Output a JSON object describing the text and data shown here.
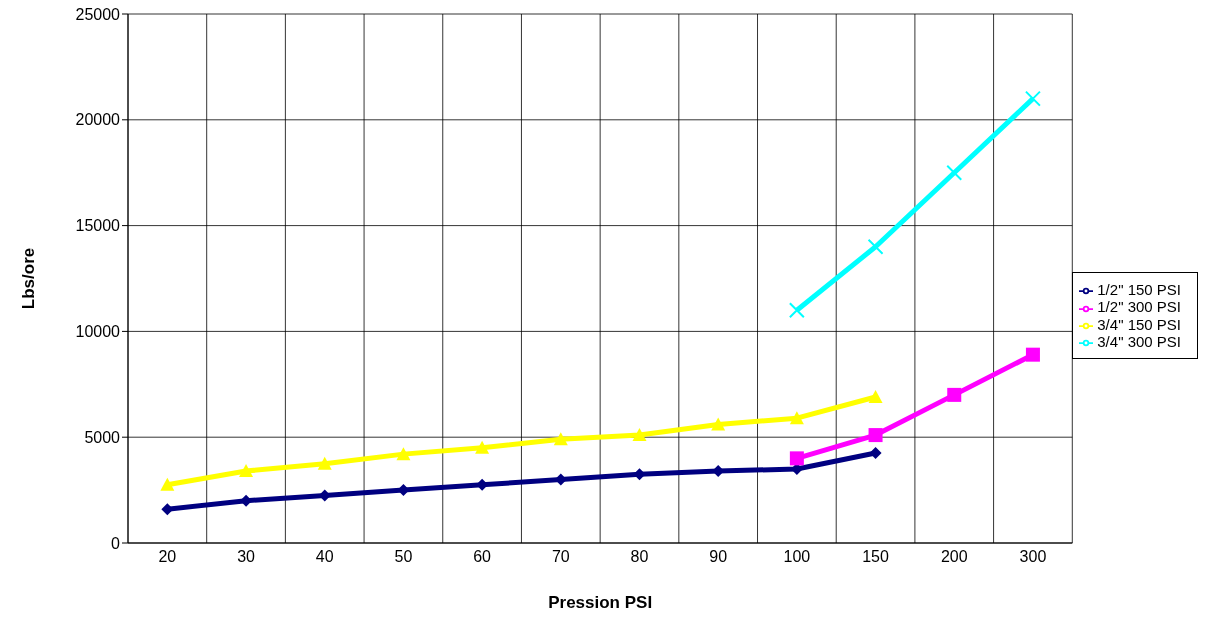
{
  "chart_data": {
    "type": "line",
    "xlabel": "Pression PSI",
    "ylabel": "Lbs/ore",
    "categories": [
      "20",
      "30",
      "40",
      "50",
      "60",
      "70",
      "80",
      "90",
      "100",
      "150",
      "200",
      "300"
    ],
    "series": [
      {
        "name": "1/2\" 150 PSI",
        "color": "#000080",
        "marker": "diamond",
        "values": [
          1600,
          2000,
          2250,
          2500,
          2750,
          3000,
          3250,
          3400,
          3500,
          4250,
          null,
          null
        ]
      },
      {
        "name": "1/2\" 300 PSI",
        "color": "#ff00ff",
        "marker": "square",
        "values": [
          null,
          null,
          null,
          null,
          null,
          null,
          null,
          null,
          4000,
          5100,
          7000,
          8900
        ]
      },
      {
        "name": "3/4\" 150 PSI",
        "color": "#ffff00",
        "marker": "triangle",
        "values": [
          2750,
          3400,
          3750,
          4200,
          4500,
          4900,
          5100,
          5600,
          5900,
          6900,
          null,
          null
        ]
      },
      {
        "name": "3/4\" 300 PSI",
        "color": "#00ffff",
        "marker": "cross",
        "values": [
          null,
          null,
          null,
          null,
          null,
          null,
          null,
          null,
          11000,
          14000,
          17500,
          21000
        ]
      }
    ],
    "ylim": [
      0,
      25000
    ],
    "yticks": [
      0,
      5000,
      10000,
      15000,
      20000,
      25000
    ],
    "grid": true,
    "legend": "right",
    "line_style": "solid"
  }
}
